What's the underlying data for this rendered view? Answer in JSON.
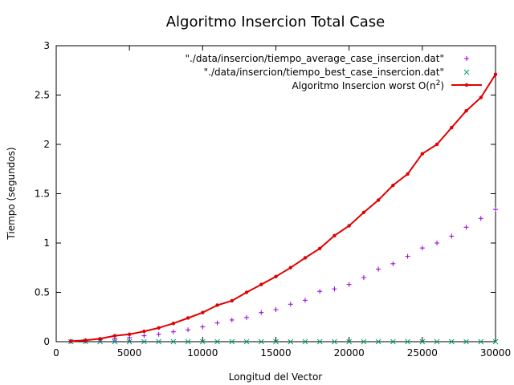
{
  "chart_data": {
    "type": "line",
    "title": "Algoritmo Insercion Total Case",
    "xlabel": "Longitud del Vector",
    "ylabel": "Tiempo (segundos)",
    "xlim": [
      0,
      30000
    ],
    "ylim": [
      0,
      3
    ],
    "xticks": [
      0,
      5000,
      10000,
      15000,
      20000,
      25000,
      30000
    ],
    "yticks": [
      0,
      0.5,
      1,
      1.5,
      2,
      2.5,
      3
    ],
    "xtick_labels": [
      "0",
      "5000",
      "10000",
      "15000",
      "20000",
      "25000",
      "30000"
    ],
    "ytick_labels": [
      "0",
      "0.5",
      "1",
      "1.5",
      "2",
      "2.5",
      "3"
    ],
    "grid": false,
    "legend_position": "top-right",
    "x": [
      1000,
      2000,
      3000,
      4000,
      5000,
      6000,
      7000,
      8000,
      9000,
      10000,
      11000,
      12000,
      13000,
      14000,
      15000,
      16000,
      17000,
      18000,
      19000,
      20000,
      21000,
      22000,
      23000,
      24000,
      25000,
      26000,
      27000,
      28000,
      29000,
      30000
    ],
    "series": [
      {
        "name": "\"./data/insercion/tiempo_average_case_insercion.dat\"",
        "style": "points",
        "marker": "plus",
        "color": "#9400d3",
        "values": [
          0.005,
          0.01,
          0.02,
          0.03,
          0.04,
          0.06,
          0.075,
          0.1,
          0.12,
          0.15,
          0.19,
          0.22,
          0.245,
          0.295,
          0.325,
          0.38,
          0.42,
          0.51,
          0.535,
          0.58,
          0.65,
          0.735,
          0.79,
          0.865,
          0.95,
          1.0,
          1.07,
          1.16,
          1.25,
          1.34
        ]
      },
      {
        "name": "\"./data/insercion/tiempo_best_case_insercion.dat\"",
        "style": "points",
        "marker": "cross",
        "color": "#009e73",
        "values": [
          0,
          0,
          0,
          0,
          0,
          0,
          0,
          0,
          0,
          0,
          0,
          0,
          0,
          0,
          0,
          0,
          0,
          0,
          0,
          0,
          0,
          0,
          0,
          0,
          0,
          0,
          0,
          0,
          0,
          0
        ]
      },
      {
        "name": "Algoritmo Insercion worst O(n2)",
        "legend_main": "Algoritmo Insercion worst O(n",
        "legend_sup": "2",
        "legend_end": ")",
        "style": "linespoints",
        "color": "#e00000",
        "values": [
          0.005,
          0.015,
          0.03,
          0.06,
          0.075,
          0.105,
          0.14,
          0.185,
          0.24,
          0.295,
          0.37,
          0.415,
          0.5,
          0.58,
          0.66,
          0.75,
          0.85,
          0.945,
          1.075,
          1.175,
          1.31,
          1.435,
          1.585,
          1.7,
          1.905,
          2.0,
          2.17,
          2.34,
          2.475,
          2.71
        ]
      }
    ]
  }
}
